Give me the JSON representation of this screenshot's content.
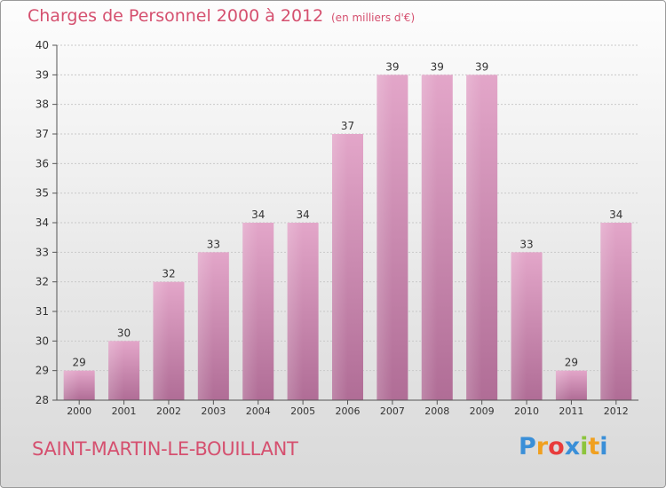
{
  "header": {
    "title": "Charges de Personnel 2000 à 2012",
    "subtitle": "(en milliers d'€)"
  },
  "footer": {
    "commune": "SAINT-MARTIN-LE-BOUILLANT",
    "brand_letters": [
      "P",
      "r",
      "o",
      "x",
      "i",
      "t",
      "i"
    ],
    "brand_colors": [
      "#3a8fd8",
      "#f0a020",
      "#e83c3c",
      "#3a8fd8",
      "#8cc43c",
      "#f0a020",
      "#3a8fd8"
    ]
  },
  "colors": {
    "bar_top": "#e3a6c9",
    "bar_bottom": "#b06d96",
    "accent": "#d5506f",
    "grid": "#c9c9c9"
  },
  "chart_data": {
    "type": "bar",
    "categories": [
      "2000",
      "2001",
      "2002",
      "2003",
      "2004",
      "2005",
      "2006",
      "2007",
      "2008",
      "2009",
      "2010",
      "2011",
      "2012"
    ],
    "values": [
      29,
      30,
      32,
      33,
      34,
      34,
      37,
      39,
      39,
      39,
      33,
      29,
      34
    ],
    "ylim": [
      28,
      40
    ],
    "yticks": [
      28,
      29,
      30,
      31,
      32,
      33,
      34,
      35,
      36,
      37,
      38,
      39,
      40
    ],
    "grid": true
  }
}
